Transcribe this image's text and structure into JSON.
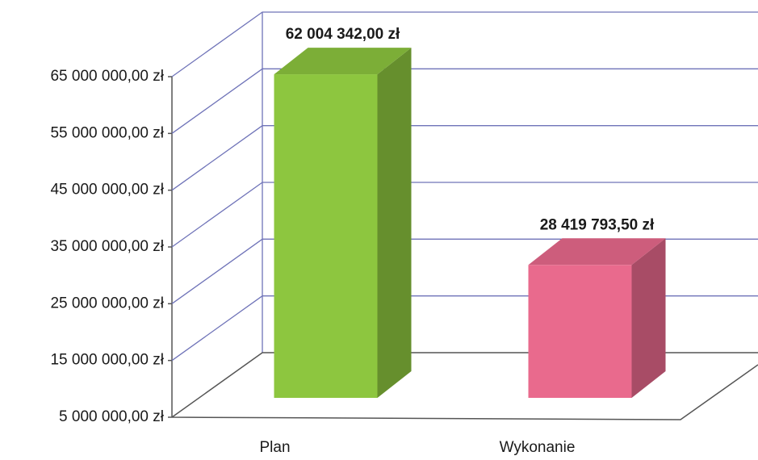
{
  "chart_data": {
    "type": "bar3d",
    "categories": [
      "Plan",
      "Wykonanie"
    ],
    "values": [
      62004342,
      28419793.5
    ],
    "value_labels": [
      "62 004 342,00 zł",
      "28 419 793,50 zł"
    ],
    "colors": [
      "#8dc63f",
      "#e96a8d"
    ],
    "ylim": [
      5000000,
      65000000
    ],
    "yticks": [
      {
        "value": 5000000,
        "label": "5 000 000,00 zł"
      },
      {
        "value": 15000000,
        "label": "15 000 000,00 zł"
      },
      {
        "value": 25000000,
        "label": "25 000 000,00 zł"
      },
      {
        "value": 35000000,
        "label": "35 000 000,00 zł"
      },
      {
        "value": 45000000,
        "label": "45 000 000,00 zł"
      },
      {
        "value": 55000000,
        "label": "55 000 000,00 zł"
      },
      {
        "value": 65000000,
        "label": "65 000 000,00 zł"
      }
    ],
    "grid": true
  }
}
